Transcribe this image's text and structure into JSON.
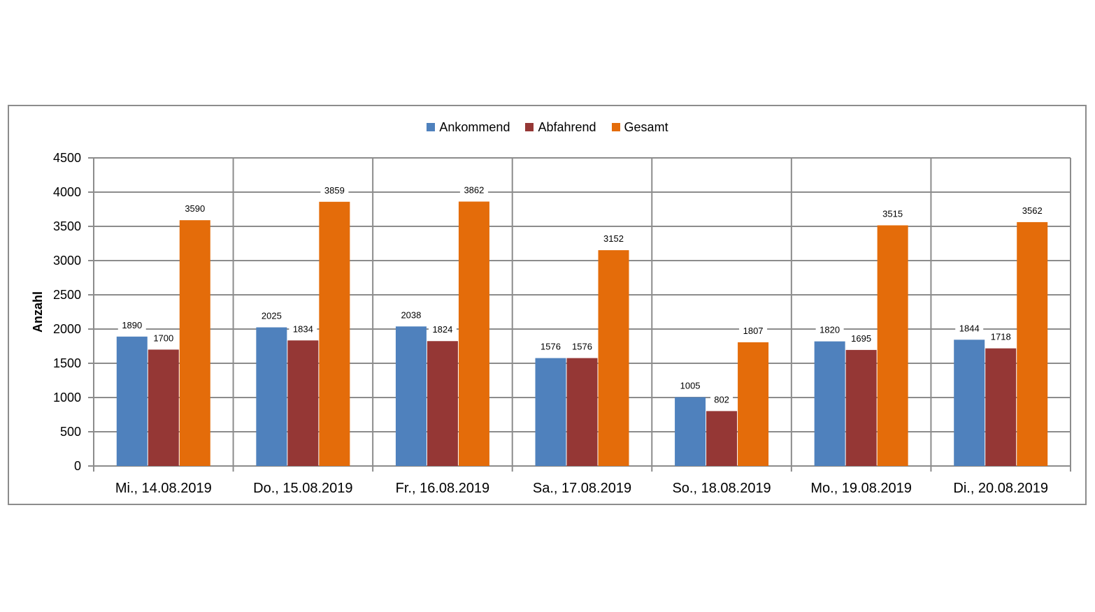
{
  "chart_data": {
    "type": "bar",
    "ylabel": "Anzahl",
    "ylim": [
      0,
      4500
    ],
    "yticks": [
      0,
      500,
      1000,
      1500,
      2000,
      2500,
      3000,
      3500,
      4000,
      4500
    ],
    "grid": true,
    "legend_position": "top-center",
    "categories": [
      "Mi., 14.08.2019",
      "Do., 15.08.2019",
      "Fr., 16.08.2019",
      "Sa., 17.08.2019",
      "So., 18.08.2019",
      "Mo., 19.08.2019",
      "Di., 20.08.2019"
    ],
    "series": [
      {
        "name": "Ankommend",
        "color": "#4f81bd",
        "values": [
          1890,
          2025,
          2038,
          1576,
          1005,
          1820,
          1844
        ]
      },
      {
        "name": "Abfahrend",
        "color": "#953735",
        "values": [
          1700,
          1834,
          1824,
          1576,
          802,
          1695,
          1718
        ]
      },
      {
        "name": "Gesamt",
        "color": "#e46c0a",
        "values": [
          3590,
          3859,
          3862,
          3152,
          1807,
          3515,
          3562
        ]
      }
    ]
  }
}
